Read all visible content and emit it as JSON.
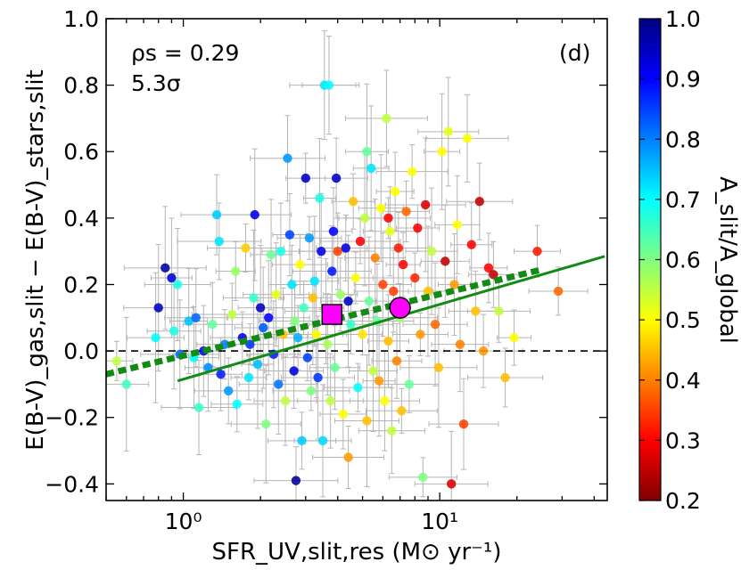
{
  "chart_data": {
    "type": "scatter",
    "panel_label": "(d)",
    "xlabel": "SFR_UV,slit,res (M⊙ yr⁻¹)",
    "ylabel": "E(B-V)_gas,slit − E(B-V)_stars,slit",
    "xscale": "log",
    "xlim": [
      0.5,
      45
    ],
    "ylim": [
      -0.45,
      1.0
    ],
    "x_tick_values": [
      1,
      10
    ],
    "x_tick_labels": [
      "10⁰",
      "10¹"
    ],
    "y_tick_values": [
      -0.4,
      -0.2,
      0.0,
      0.2,
      0.4,
      0.6,
      0.8,
      1.0
    ],
    "y_tick_labels": [
      "−0.4",
      "−0.2",
      "0.0",
      "0.2",
      "0.4",
      "0.6",
      "0.8",
      "1.0"
    ],
    "annotations": {
      "rho": "ρs = 0.29",
      "sigma": "5.3σ"
    },
    "colorbar": {
      "label": "A_slit/A_global",
      "range": [
        0.2,
        1.0
      ],
      "tick_values": [
        1.0,
        0.9,
        0.8,
        0.7,
        0.6,
        0.5,
        0.4,
        0.3,
        0.2
      ],
      "tick_labels": [
        "1.0",
        "0.9",
        "0.8",
        "0.7",
        "0.6",
        "0.5",
        "0.4",
        "0.3",
        "0.2"
      ],
      "colormap": "jet"
    },
    "zero_line": {
      "y": 0.0,
      "style": "dashed",
      "color": "#000000"
    },
    "fit_lines": [
      {
        "style": "solid",
        "color": "#138a13",
        "x": [
          0.95,
          44
        ],
        "y": [
          -0.09,
          0.285
        ]
      },
      {
        "style": "dotted",
        "color": "#138a13",
        "x": [
          0.5,
          25
        ],
        "y": [
          -0.07,
          0.245
        ]
      }
    ],
    "median_points": [
      {
        "marker": "square",
        "color": "#ff00ff",
        "x": 3.8,
        "y": 0.11
      },
      {
        "marker": "circle",
        "color": "#ff00ff",
        "x": 7.0,
        "y": 0.13
      }
    ],
    "series": [
      {
        "points": [
          [
            0.55,
            -0.03,
            0.55
          ],
          [
            0.6,
            -0.1,
            0.65
          ],
          [
            0.78,
            0.04,
            0.7
          ],
          [
            0.8,
            0.13,
            0.95
          ],
          [
            0.85,
            0.25,
            0.97
          ],
          [
            0.9,
            0.22,
            0.93
          ],
          [
            0.92,
            0.06,
            0.68
          ],
          [
            0.95,
            0.2,
            0.68
          ],
          [
            0.97,
            -0.01,
            0.82
          ],
          [
            1.05,
            0.09,
            0.75
          ],
          [
            1.1,
            -0.02,
            0.7
          ],
          [
            1.12,
            0.1,
            0.82
          ],
          [
            1.15,
            -0.17,
            0.66
          ],
          [
            1.2,
            0.0,
            0.9
          ],
          [
            1.25,
            -0.05,
            0.79
          ],
          [
            1.3,
            0.08,
            0.62
          ],
          [
            1.35,
            0.41,
            0.74
          ],
          [
            1.38,
            0.33,
            0.72
          ],
          [
            1.4,
            -0.07,
            0.88
          ],
          [
            1.45,
            0.02,
            0.8
          ],
          [
            1.5,
            -0.12,
            0.78
          ],
          [
            1.55,
            0.11,
            0.55
          ],
          [
            1.6,
            0.24,
            0.58
          ],
          [
            1.62,
            -0.16,
            0.7
          ],
          [
            1.7,
            0.04,
            0.92
          ],
          [
            1.75,
            0.31,
            0.46
          ],
          [
            1.8,
            -0.08,
            0.72
          ],
          [
            1.82,
            0.02,
            0.86
          ],
          [
            1.88,
            0.16,
            0.66
          ],
          [
            1.9,
            0.41,
            0.92
          ],
          [
            1.95,
            -0.04,
            0.75
          ],
          [
            2.0,
            0.13,
            0.95
          ],
          [
            2.05,
            0.07,
            0.83
          ],
          [
            2.1,
            -0.22,
            0.6
          ],
          [
            2.15,
            0.1,
            0.9
          ],
          [
            2.2,
            0.29,
            0.62
          ],
          [
            2.25,
            -0.01,
            0.88
          ],
          [
            2.3,
            0.17,
            0.52
          ],
          [
            2.35,
            -0.1,
            0.81
          ],
          [
            2.4,
            0.3,
            0.68
          ],
          [
            2.45,
            0.05,
            0.45
          ],
          [
            2.5,
            -0.15,
            0.55
          ],
          [
            2.55,
            0.58,
            0.78
          ],
          [
            2.6,
            0.35,
            0.85
          ],
          [
            2.65,
            0.2,
            0.72
          ],
          [
            2.7,
            -0.06,
            0.93
          ],
          [
            2.72,
            0.09,
            0.6
          ],
          [
            2.75,
            -0.39,
            0.98
          ],
          [
            2.8,
            0.04,
            0.76
          ],
          [
            2.85,
            0.26,
            0.5
          ],
          [
            2.9,
            -0.27,
            0.74
          ],
          [
            2.95,
            0.13,
            0.65
          ],
          [
            3.0,
            0.52,
            0.95
          ],
          [
            3.05,
            -0.02,
            0.85
          ],
          [
            3.1,
            0.34,
            0.78
          ],
          [
            3.15,
            -0.12,
            0.6
          ],
          [
            3.2,
            0.16,
            0.45
          ],
          [
            3.25,
            0.21,
            0.72
          ],
          [
            3.3,
            0.05,
            0.5
          ],
          [
            3.35,
            -0.08,
            0.86
          ],
          [
            3.4,
            0.46,
            0.68
          ],
          [
            3.45,
            0.3,
            0.92
          ],
          [
            3.5,
            -0.27,
            0.73
          ],
          [
            3.55,
            0.8,
            0.72
          ],
          [
            3.6,
            0.12,
            0.4
          ],
          [
            3.65,
            0.02,
            0.57
          ],
          [
            3.7,
            0.8,
            0.7
          ],
          [
            3.75,
            -0.15,
            0.55
          ],
          [
            3.8,
            0.24,
            0.88
          ],
          [
            3.85,
            0.36,
            0.9
          ],
          [
            3.9,
            -0.05,
            0.62
          ],
          [
            3.95,
            0.52,
            0.95
          ],
          [
            4.0,
            0.3,
            0.35
          ],
          [
            4.1,
            0.17,
            0.58
          ],
          [
            4.2,
            -0.19,
            0.5
          ],
          [
            4.3,
            0.31,
            0.92
          ],
          [
            4.4,
            -0.32,
            0.42
          ],
          [
            4.5,
            0.08,
            0.66
          ],
          [
            4.6,
            0.45,
            0.45
          ],
          [
            4.7,
            0.22,
            0.5
          ],
          [
            4.8,
            -0.11,
            0.7
          ],
          [
            4.9,
            0.33,
            0.3
          ],
          [
            5.0,
            0.05,
            0.48
          ],
          [
            5.1,
            0.4,
            0.55
          ],
          [
            5.2,
            -0.21,
            0.45
          ],
          [
            5.3,
            0.15,
            0.62
          ],
          [
            5.4,
            0.55,
            0.72
          ],
          [
            5.5,
            -0.06,
            0.55
          ],
          [
            5.6,
            0.28,
            0.4
          ],
          [
            5.7,
            0.09,
            0.62
          ],
          [
            5.8,
            -0.09,
            0.42
          ],
          [
            5.9,
            0.43,
            0.5
          ],
          [
            6.0,
            0.2,
            0.35
          ],
          [
            6.1,
            -0.15,
            0.5
          ],
          [
            6.2,
            0.7,
            0.55
          ],
          [
            6.3,
            0.03,
            0.45
          ],
          [
            6.4,
            0.36,
            0.52
          ],
          [
            6.5,
            -0.24,
            0.55
          ],
          [
            6.6,
            0.18,
            0.35
          ],
          [
            6.7,
            0.48,
            0.5
          ],
          [
            6.8,
            -0.03,
            0.4
          ],
          [
            6.9,
            0.31,
            0.32
          ],
          [
            7.0,
            0.1,
            0.58
          ],
          [
            7.2,
            0.26,
            0.3
          ],
          [
            7.4,
            0.42,
            0.38
          ],
          [
            7.6,
            -0.1,
            0.62
          ],
          [
            7.8,
            0.54,
            0.5
          ],
          [
            8.0,
            0.22,
            0.33
          ],
          [
            8.2,
            0.37,
            0.3
          ],
          [
            8.4,
            0.05,
            0.42
          ],
          [
            8.6,
            -0.38,
            0.6
          ],
          [
            8.8,
            0.44,
            0.27
          ],
          [
            9.0,
            0.18,
            0.45
          ],
          [
            9.3,
            0.3,
            0.55
          ],
          [
            9.6,
            0.08,
            0.38
          ],
          [
            9.9,
            -0.05,
            0.45
          ],
          [
            10.2,
            0.6,
            0.5
          ],
          [
            10.5,
            0.27,
            0.25
          ],
          [
            10.8,
            0.66,
            0.52
          ],
          [
            11.1,
            -0.4,
            0.27
          ],
          [
            11.4,
            0.2,
            0.42
          ],
          [
            11.7,
            0.38,
            0.5
          ],
          [
            12.0,
            0.02,
            0.4
          ],
          [
            12.4,
            -0.22,
            0.35
          ],
          [
            12.8,
            0.64,
            0.5
          ],
          [
            13.3,
            0.32,
            0.3
          ],
          [
            13.8,
            0.12,
            0.45
          ],
          [
            14.3,
            0.45,
            0.25
          ],
          [
            14.8,
            0.0,
            0.42
          ],
          [
            15.5,
            0.25,
            0.3
          ],
          [
            16.2,
            0.23,
            0.25
          ],
          [
            17.0,
            0.12,
            0.55
          ],
          [
            18.0,
            -0.08,
            0.45
          ],
          [
            19.5,
            0.04,
            0.5
          ],
          [
            24.0,
            0.3,
            0.32
          ],
          [
            29.0,
            0.18,
            0.38
          ],
          [
            7.1,
            -0.18,
            0.45
          ],
          [
            6.3,
            0.4,
            0.3
          ],
          [
            5.2,
            0.6,
            0.62
          ],
          [
            4.4,
            0.15,
            0.95
          ]
        ]
      }
    ]
  }
}
